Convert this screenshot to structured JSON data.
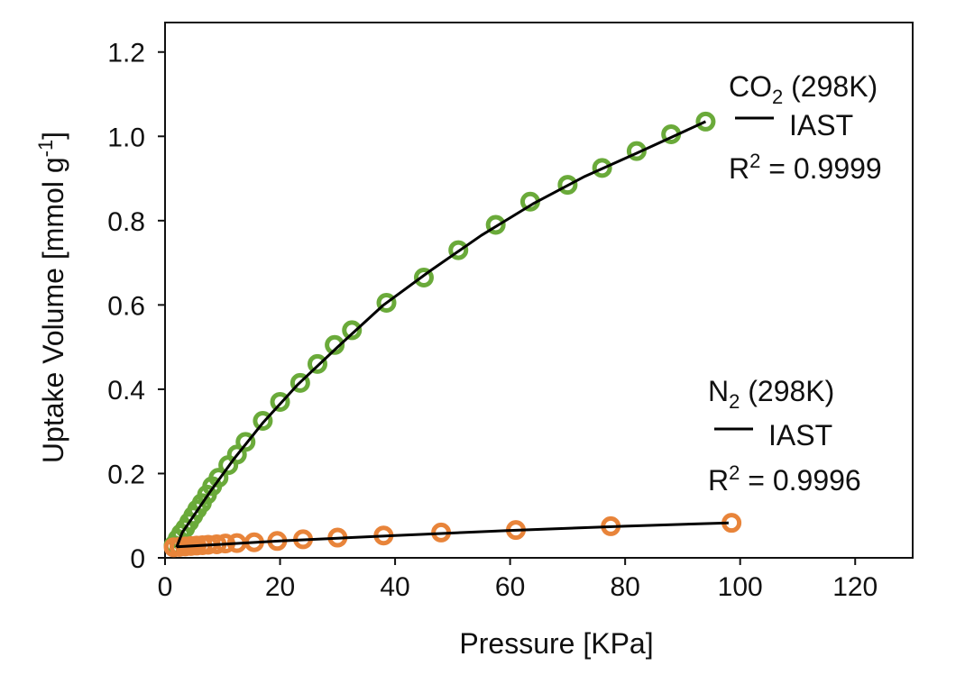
{
  "chart_data": {
    "type": "scatter",
    "title": "",
    "xlabel": "Pressure [KPa]",
    "ylabel": {
      "base": "Uptake Volume [mmol g",
      "sup": "-1",
      "close": "]"
    },
    "xlim": [
      0,
      130
    ],
    "ylim": [
      0,
      1.27
    ],
    "xticks": [
      0,
      20,
      40,
      60,
      80,
      100,
      120
    ],
    "xtick_labels": [
      "0",
      "20",
      "40",
      "60",
      "80",
      "100",
      "120"
    ],
    "yticks": [
      0,
      0.2,
      0.4,
      0.6,
      0.8,
      1.0,
      1.2
    ],
    "ytick_labels": [
      "0",
      "0.2",
      "0.4",
      "0.6",
      "0.8",
      "1.0",
      "1.2"
    ],
    "grid": false,
    "series": [
      {
        "name": "CO2 (298K)",
        "color": "#6aaa3a",
        "x": [
          1.5,
          2.2,
          2.8,
          3.5,
          4.2,
          4.9,
          5.6,
          6.4,
          7.3,
          8.2,
          9.3,
          11.0,
          12.5,
          14.0,
          17.0,
          20.0,
          23.5,
          26.5,
          29.5,
          32.5,
          38.5,
          45.0,
          51.0,
          57.5,
          63.5,
          70.0,
          76.0,
          82.0,
          88.0,
          94.0
        ],
        "y": [
          0.03,
          0.045,
          0.058,
          0.07,
          0.085,
          0.1,
          0.115,
          0.13,
          0.15,
          0.17,
          0.19,
          0.22,
          0.245,
          0.275,
          0.325,
          0.37,
          0.415,
          0.46,
          0.505,
          0.54,
          0.605,
          0.665,
          0.73,
          0.79,
          0.845,
          0.885,
          0.925,
          0.965,
          1.005,
          1.035
        ]
      },
      {
        "name": "N2 (298K)",
        "color": "#e8843a",
        "x": [
          1.5,
          2.5,
          3.5,
          4.5,
          5.5,
          6.5,
          7.5,
          9.0,
          10.5,
          12.5,
          15.5,
          19.5,
          24.0,
          30.0,
          38.0,
          48.0,
          61.0,
          77.5,
          98.5
        ],
        "y": [
          0.025,
          0.026,
          0.027,
          0.028,
          0.029,
          0.03,
          0.031,
          0.032,
          0.034,
          0.035,
          0.037,
          0.04,
          0.044,
          0.048,
          0.053,
          0.06,
          0.066,
          0.075,
          0.083
        ]
      }
    ],
    "fits": [
      {
        "name": "IAST",
        "color": "#000000",
        "x": [
          2.0,
          3.0,
          5.0,
          8.0,
          12.0,
          17.0,
          23.0,
          30.0,
          38.0,
          46.0,
          55.0,
          64.0,
          73.0,
          82.0,
          90.0,
          94.0
        ],
        "y": [
          0.025,
          0.06,
          0.1,
          0.16,
          0.235,
          0.32,
          0.41,
          0.5,
          0.6,
          0.68,
          0.765,
          0.84,
          0.905,
          0.96,
          1.01,
          1.035
        ]
      },
      {
        "name": "IAST",
        "color": "#000000",
        "x": [
          2.0,
          20.0,
          40.0,
          60.0,
          80.0,
          98.0
        ],
        "y": [
          0.026,
          0.04,
          0.053,
          0.065,
          0.075,
          0.083
        ]
      }
    ],
    "legends": [
      {
        "gas": "CO",
        "sub": "2",
        "temp": " (298K)",
        "fit_label": "IAST",
        "r2_prefix": "R",
        "r2_sup": "2",
        "r2_value": " = 0.9999"
      },
      {
        "gas": "N",
        "sub": "2",
        "temp": " (298K)",
        "fit_label": "IAST",
        "r2_prefix": "R",
        "r2_sup": "2",
        "r2_value": " = 0.9996"
      }
    ]
  }
}
